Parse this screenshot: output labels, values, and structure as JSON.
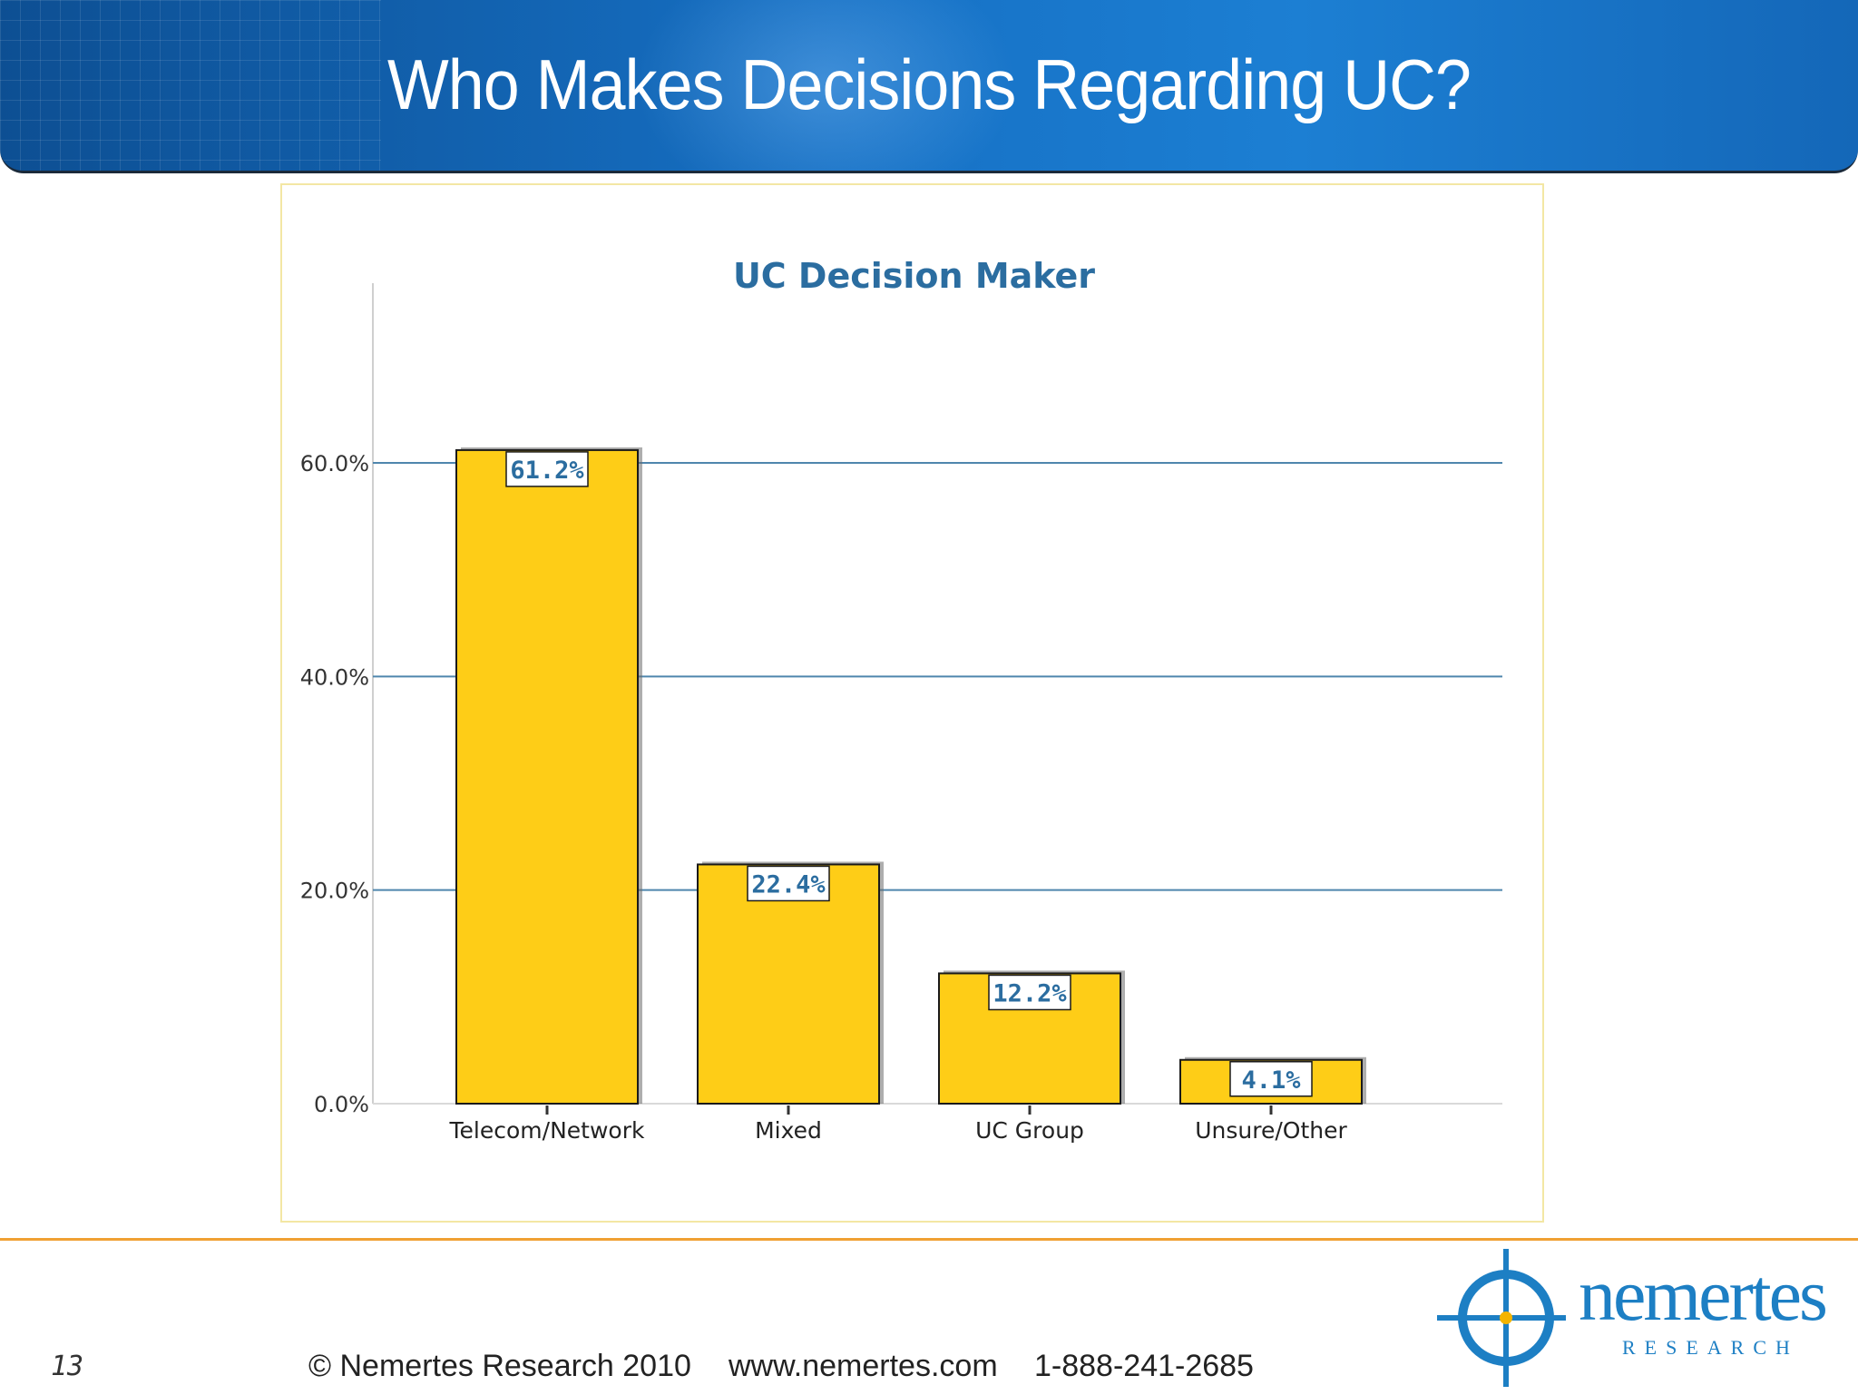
{
  "slide": {
    "title": "Who Makes Decisions Regarding UC?",
    "page_number": "13",
    "footer_copyright": "© Nemertes Research 2010",
    "footer_website": "www.nemertes.com",
    "footer_phone": "1-888-241-2685",
    "logo_name": "nemertes",
    "logo_tagline": "RESEARCH"
  },
  "colors": {
    "banner": "#1670c4",
    "bar_fill": "#fecd17",
    "gridline": "#4f86ad",
    "chart_title": "#2b6da0",
    "accent_line": "#f0a033"
  },
  "chart_data": {
    "type": "bar",
    "title": "UC Decision Maker",
    "categories": [
      "Telecom/Network",
      "Mixed",
      "UC Group",
      "Unsure/Other"
    ],
    "values": [
      61.2,
      22.4,
      12.2,
      4.1
    ],
    "data_labels": [
      "61.2%",
      "22.4%",
      "12.2%",
      "4.1%"
    ],
    "y_ticks": [
      0,
      20,
      40,
      60
    ],
    "y_tick_labels": [
      "0.0%",
      "20.0%",
      "40.0%",
      "60.0%"
    ],
    "ylim": [
      0,
      77
    ],
    "xlabel": "",
    "ylabel": "",
    "grid": true,
    "legend": "none"
  }
}
